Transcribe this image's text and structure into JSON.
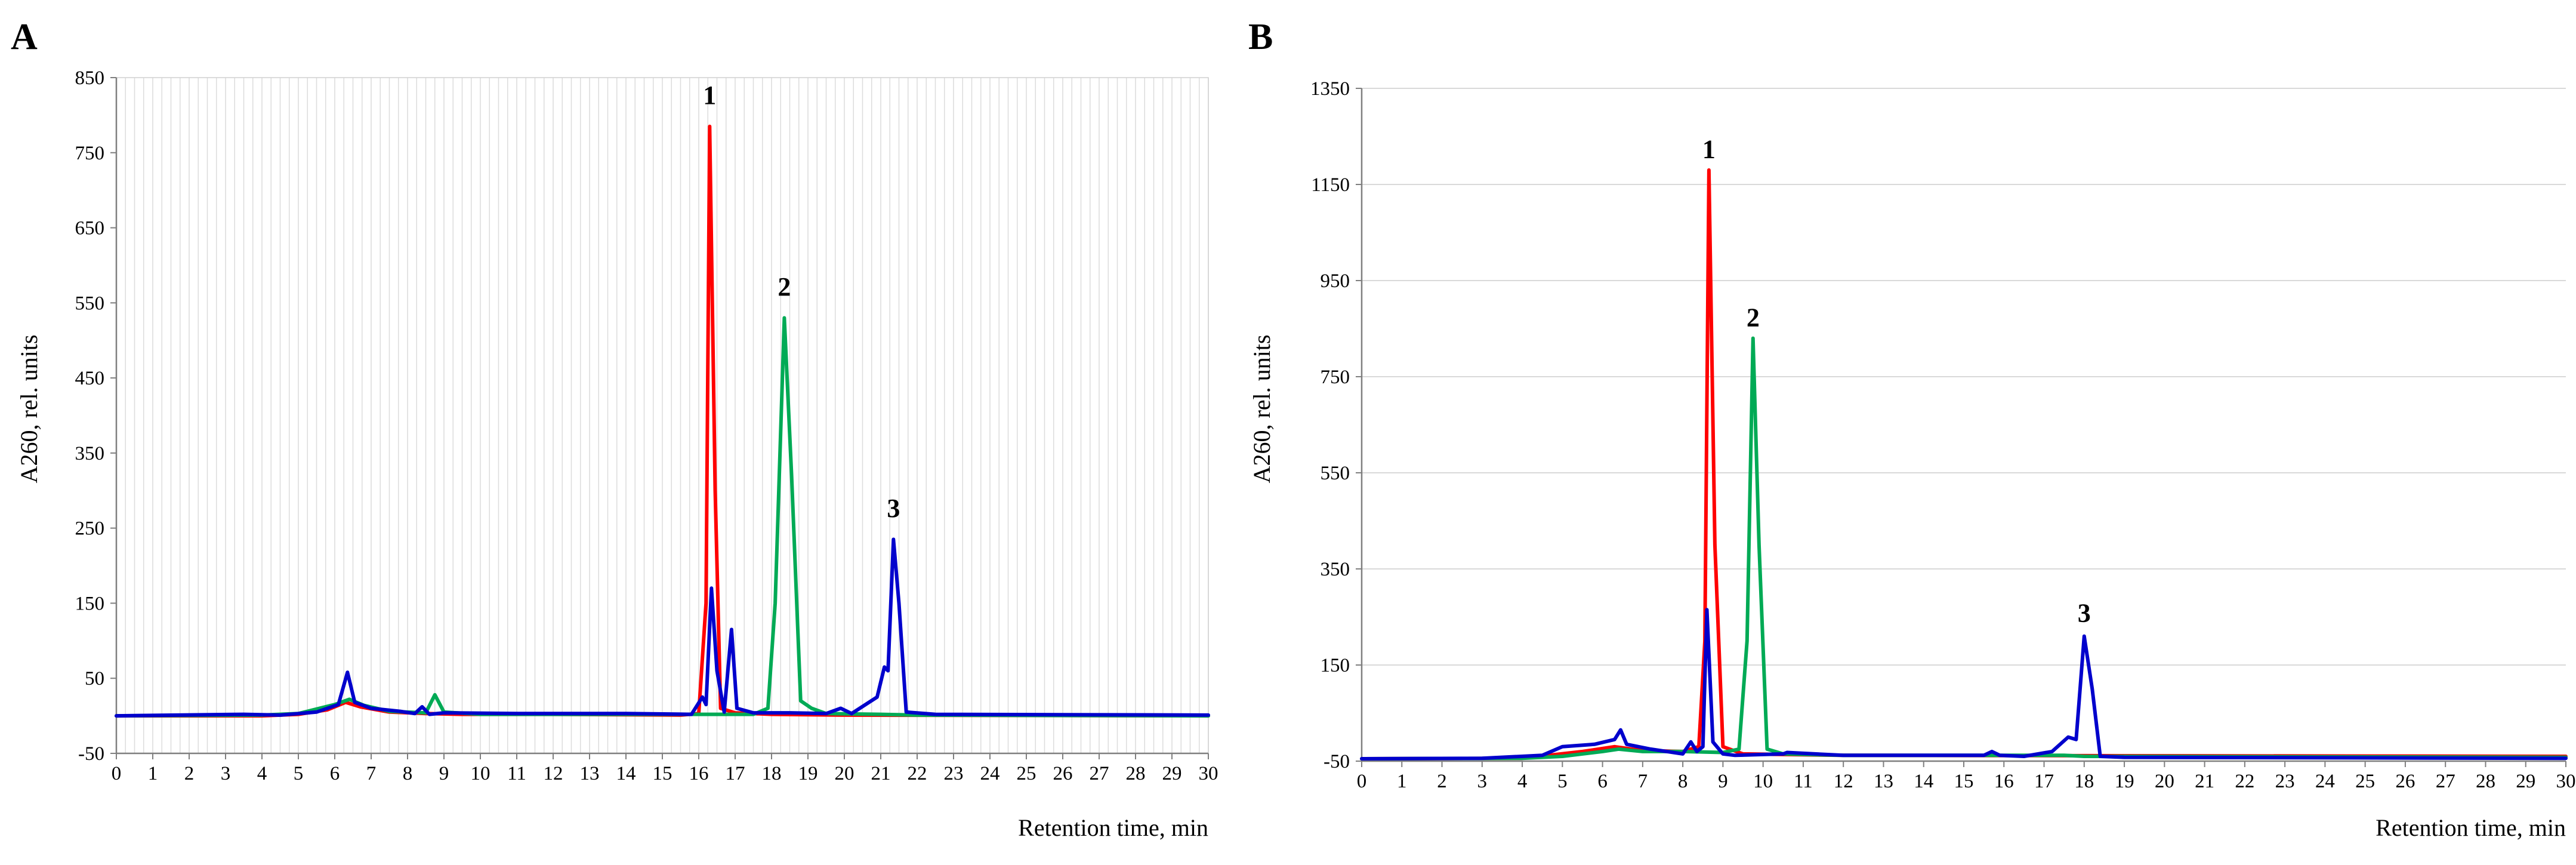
{
  "chart_data": [
    {
      "type": "line",
      "panel_label": "A",
      "xlabel": "Retention time, min",
      "ylabel": "A260, rel. units",
      "xlim": [
        0,
        30
      ],
      "ylim": [
        -50,
        850
      ],
      "x_ticks": [
        0,
        1,
        2,
        3,
        4,
        5,
        6,
        7,
        8,
        9,
        10,
        11,
        12,
        13,
        14,
        15,
        16,
        17,
        18,
        19,
        20,
        21,
        22,
        23,
        24,
        25,
        26,
        27,
        28,
        29,
        30
      ],
      "y_ticks": [
        -50,
        50,
        150,
        250,
        350,
        450,
        550,
        650,
        750,
        850
      ],
      "grid": "vertical minor gridlines",
      "series": [
        {
          "color": "#ff0000",
          "points": [
            [
              0,
              0
            ],
            [
              4,
              0
            ],
            [
              5,
              2
            ],
            [
              5.8,
              8
            ],
            [
              6.3,
              18
            ],
            [
              6.7,
              12
            ],
            [
              7.5,
              5
            ],
            [
              8.5,
              3
            ],
            [
              9.5,
              2
            ],
            [
              12,
              2
            ],
            [
              15.5,
              1
            ],
            [
              16.0,
              3
            ],
            [
              16.2,
              150
            ],
            [
              16.3,
              785
            ],
            [
              16.45,
              300
            ],
            [
              16.6,
              10
            ],
            [
              17,
              4
            ],
            [
              18,
              2
            ],
            [
              20,
              1
            ],
            [
              30,
              0
            ]
          ]
        },
        {
          "color": "#00aa55",
          "points": [
            [
              0,
              0
            ],
            [
              4,
              1
            ],
            [
              5,
              3
            ],
            [
              6,
              15
            ],
            [
              6.4,
              22
            ],
            [
              6.8,
              14
            ],
            [
              7.5,
              6
            ],
            [
              8.5,
              4
            ],
            [
              8.75,
              28
            ],
            [
              9.0,
              5
            ],
            [
              10,
              2
            ],
            [
              14,
              2
            ],
            [
              16,
              2
            ],
            [
              17.5,
              2
            ],
            [
              17.9,
              10
            ],
            [
              18.1,
              150
            ],
            [
              18.35,
              530
            ],
            [
              18.55,
              320
            ],
            [
              18.8,
              20
            ],
            [
              19.1,
              10
            ],
            [
              19.5,
              3
            ],
            [
              21,
              2
            ],
            [
              22,
              1
            ],
            [
              30,
              0
            ]
          ]
        },
        {
          "color": "#0000cc",
          "points": [
            [
              0,
              0
            ],
            [
              3.5,
              2
            ],
            [
              4.5,
              1
            ],
            [
              5.5,
              5
            ],
            [
              6.1,
              15
            ],
            [
              6.35,
              58
            ],
            [
              6.55,
              18
            ],
            [
              7,
              10
            ],
            [
              7.8,
              6
            ],
            [
              8.2,
              3
            ],
            [
              8.4,
              12
            ],
            [
              8.6,
              2
            ],
            [
              9,
              4
            ],
            [
              11,
              3
            ],
            [
              14,
              3
            ],
            [
              15.8,
              2
            ],
            [
              16.1,
              25
            ],
            [
              16.2,
              15
            ],
            [
              16.35,
              170
            ],
            [
              16.5,
              60
            ],
            [
              16.7,
              5
            ],
            [
              16.9,
              115
            ],
            [
              17.05,
              10
            ],
            [
              17.5,
              4
            ],
            [
              18.5,
              4
            ],
            [
              19.5,
              3
            ],
            [
              19.9,
              10
            ],
            [
              20.2,
              3
            ],
            [
              20.9,
              25
            ],
            [
              21.1,
              65
            ],
            [
              21.2,
              60
            ],
            [
              21.35,
              235
            ],
            [
              21.5,
              150
            ],
            [
              21.7,
              5
            ],
            [
              22.5,
              2
            ],
            [
              30,
              1
            ]
          ]
        }
      ],
      "annotations": [
        {
          "text": "1",
          "x": 16.3,
          "y": 815
        },
        {
          "text": "2",
          "x": 18.35,
          "y": 560
        },
        {
          "text": "3",
          "x": 21.35,
          "y": 265
        }
      ]
    },
    {
      "type": "line",
      "panel_label": "B",
      "xlabel": "Retention time, min",
      "ylabel": "A260, rel. units",
      "xlim": [
        0,
        30
      ],
      "ylim": [
        -50,
        1350
      ],
      "x_ticks": [
        0,
        1,
        2,
        3,
        4,
        5,
        6,
        7,
        8,
        9,
        10,
        11,
        12,
        13,
        14,
        15,
        16,
        17,
        18,
        19,
        20,
        21,
        22,
        23,
        24,
        25,
        26,
        27,
        28,
        29,
        30
      ],
      "y_ticks": [
        -50,
        150,
        350,
        550,
        750,
        950,
        1150,
        1350
      ],
      "grid": "horizontal major gridlines",
      "series": [
        {
          "color": "#ff0000",
          "points": [
            [
              0,
              -45
            ],
            [
              4,
              -44
            ],
            [
              5.5,
              -30
            ],
            [
              6.3,
              -20
            ],
            [
              7,
              -28
            ],
            [
              8,
              -30
            ],
            [
              8.4,
              -20
            ],
            [
              8.55,
              200
            ],
            [
              8.65,
              1180
            ],
            [
              8.8,
              400
            ],
            [
              9.0,
              -20
            ],
            [
              9.5,
              -35
            ],
            [
              12,
              -38
            ],
            [
              30,
              -40
            ]
          ]
        },
        {
          "color": "#00aa55",
          "points": [
            [
              0,
              -45
            ],
            [
              4,
              -44
            ],
            [
              5,
              -40
            ],
            [
              6,
              -30
            ],
            [
              6.4,
              -25
            ],
            [
              7,
              -30
            ],
            [
              8,
              -30
            ],
            [
              9,
              -32
            ],
            [
              9.4,
              -25
            ],
            [
              9.6,
              200
            ],
            [
              9.75,
              830
            ],
            [
              9.9,
              400
            ],
            [
              10.1,
              -25
            ],
            [
              10.5,
              -35
            ],
            [
              12,
              -38
            ],
            [
              17,
              -38
            ],
            [
              17.5,
              -38
            ],
            [
              18,
              -40
            ],
            [
              30,
              -42
            ]
          ]
        },
        {
          "color": "#0000cc",
          "points": [
            [
              0,
              -45
            ],
            [
              3,
              -44
            ],
            [
              4.5,
              -38
            ],
            [
              5,
              -20
            ],
            [
              5.8,
              -15
            ],
            [
              6.3,
              -5
            ],
            [
              6.45,
              15
            ],
            [
              6.6,
              -15
            ],
            [
              7.2,
              -25
            ],
            [
              8,
              -35
            ],
            [
              8.2,
              -10
            ],
            [
              8.35,
              -30
            ],
            [
              8.5,
              -20
            ],
            [
              8.6,
              265
            ],
            [
              8.75,
              -10
            ],
            [
              9,
              -35
            ],
            [
              9.3,
              -38
            ],
            [
              10.5,
              -35
            ],
            [
              10.6,
              -32
            ],
            [
              12,
              -38
            ],
            [
              15.5,
              -38
            ],
            [
              15.7,
              -30
            ],
            [
              15.9,
              -38
            ],
            [
              16.5,
              -40
            ],
            [
              17.2,
              -30
            ],
            [
              17.6,
              0
            ],
            [
              17.8,
              -5
            ],
            [
              18.0,
              210
            ],
            [
              18.2,
              100
            ],
            [
              18.4,
              -40
            ],
            [
              19,
              -42
            ],
            [
              30,
              -44
            ]
          ]
        }
      ],
      "annotations": [
        {
          "text": "1",
          "x": 8.65,
          "y": 1205
        },
        {
          "text": "2",
          "x": 9.75,
          "y": 855
        },
        {
          "text": "3",
          "x": 18.0,
          "y": 240
        }
      ]
    }
  ]
}
